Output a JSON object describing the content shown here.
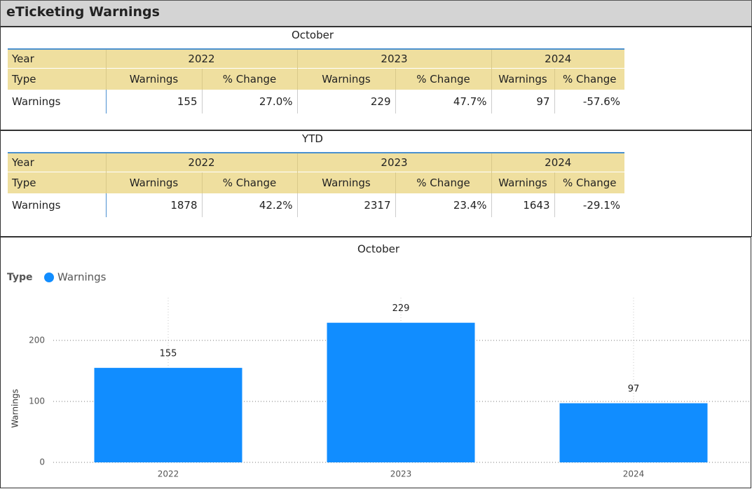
{
  "header": {
    "title": "eTicketing Warnings"
  },
  "tables": [
    {
      "title": "October",
      "year_label": "Year",
      "type_label": "Type",
      "years": [
        "2022",
        "2023",
        "2024"
      ],
      "columns": [
        "Warnings",
        "% Change",
        "Warnings",
        "% Change",
        "Warnings",
        "% Change"
      ],
      "rows": [
        [
          "Warnings",
          155,
          "27.0%",
          229,
          "47.7%",
          97,
          "-57.6%"
        ]
      ]
    },
    {
      "title": "YTD",
      "year_label": "Year",
      "type_label": "Type",
      "years": [
        "2022",
        "2023",
        "2024"
      ],
      "columns": [
        "Warnings",
        "% Change",
        "Warnings",
        "% Change",
        "Warnings",
        "% Change"
      ],
      "rows": [
        [
          "Warnings",
          1878,
          "42.2%",
          2317,
          "23.4%",
          1643,
          "-29.1%"
        ]
      ]
    }
  ],
  "chart_data": {
    "type": "bar",
    "title": "October",
    "legend_title": "Type",
    "y_label": "Warnings",
    "categories": [
      "2022",
      "2023",
      "2024"
    ],
    "series": [
      {
        "name": "Warnings",
        "color": "#118dff",
        "values": [
          155,
          229,
          97
        ]
      }
    ],
    "ylim": [
      0,
      270
    ],
    "yticks": [
      0,
      100,
      200
    ],
    "grid": true
  }
}
